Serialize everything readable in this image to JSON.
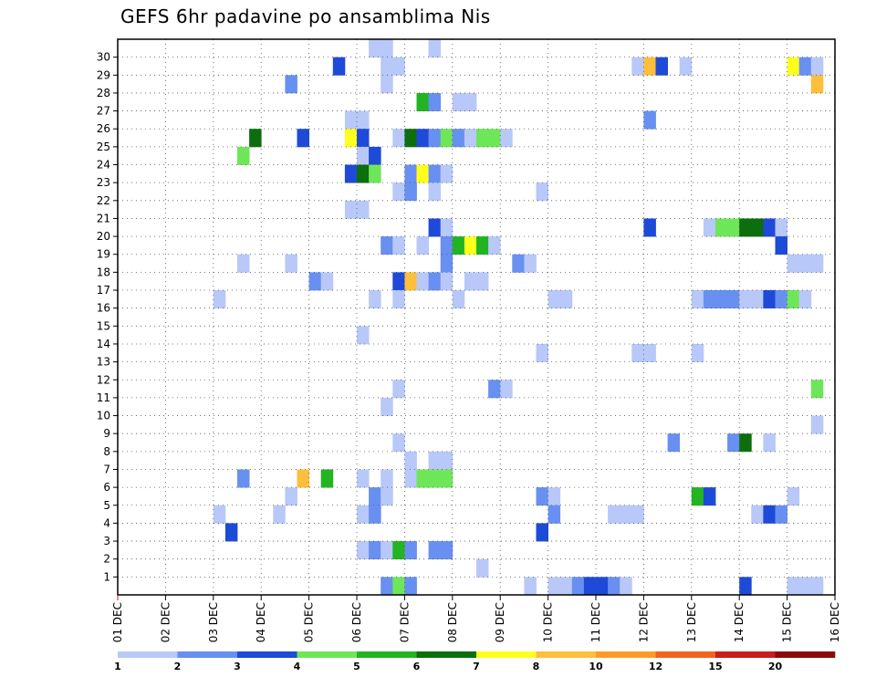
{
  "chart_data": {
    "type": "heatmap",
    "title": "GEFS 6hr padavine po ansamblima Nis",
    "xlabel": "",
    "ylabel": "",
    "x_tick_labels": [
      "01 DEC",
      "02 DEC",
      "03 DEC",
      "04 DEC",
      "05 DEC",
      "06 DEC",
      "07 DEC",
      "08 DEC",
      "09 DEC",
      "10 DEC",
      "11 DEC",
      "12 DEC",
      "13 DEC",
      "14 DEC",
      "15 DEC",
      "16 DEC"
    ],
    "y_tick_labels": [
      "1",
      "2",
      "3",
      "4",
      "5",
      "6",
      "7",
      "8",
      "9",
      "10",
      "11",
      "12",
      "13",
      "14",
      "15",
      "16",
      "17",
      "18",
      "19",
      "20",
      "21",
      "22",
      "23",
      "24",
      "25",
      "26",
      "27",
      "28",
      "29",
      "30"
    ],
    "x_range_days": [
      0,
      15
    ],
    "y_range_members": [
      0,
      30
    ],
    "time_step_hours": 6,
    "grid": "dotted",
    "legend": {
      "position": "bottom",
      "boundaries": [
        "1",
        "2",
        "3",
        "4",
        "5",
        "6",
        "7",
        "8",
        "10",
        "12",
        "15",
        "20"
      ],
      "colors": [
        "#b8c8f8",
        "#6890f0",
        "#1e4ad8",
        "#6ee65a",
        "#22b422",
        "#0c6e0c",
        "#ffff1e",
        "#ffbe3c",
        "#ff9a2a",
        "#f0641e",
        "#c81e1e",
        "#8c0a0a"
      ]
    },
    "series_note": "each cell: step = 6h index from 01 DEC 00Z, member = ensemble row (0 = bottom row), level = color class index",
    "cells": [
      {
        "member": 30,
        "step": 21,
        "level": 0
      },
      {
        "member": 30,
        "step": 22,
        "level": 0
      },
      {
        "member": 30,
        "step": 26,
        "level": 0
      },
      {
        "member": 29,
        "step": 18,
        "level": 2
      },
      {
        "member": 29,
        "step": 22,
        "level": 0
      },
      {
        "member": 29,
        "step": 23,
        "level": 0
      },
      {
        "member": 29,
        "step": 43,
        "level": 0
      },
      {
        "member": 29,
        "step": 44,
        "level": 7
      },
      {
        "member": 29,
        "step": 45,
        "level": 2
      },
      {
        "member": 29,
        "step": 47,
        "level": 0
      },
      {
        "member": 29,
        "step": 56,
        "level": 6
      },
      {
        "member": 29,
        "step": 57,
        "level": 1
      },
      {
        "member": 29,
        "step": 58,
        "level": 0
      },
      {
        "member": 28,
        "step": 14,
        "level": 1
      },
      {
        "member": 28,
        "step": 22,
        "level": 0
      },
      {
        "member": 28,
        "step": 58,
        "level": 7
      },
      {
        "member": 27,
        "step": 25,
        "level": 4
      },
      {
        "member": 27,
        "step": 26,
        "level": 1
      },
      {
        "member": 27,
        "step": 28,
        "level": 0
      },
      {
        "member": 27,
        "step": 29,
        "level": 0
      },
      {
        "member": 26,
        "step": 19,
        "level": 0
      },
      {
        "member": 26,
        "step": 20,
        "level": 0
      },
      {
        "member": 26,
        "step": 44,
        "level": 1
      },
      {
        "member": 25,
        "step": 11,
        "level": 5
      },
      {
        "member": 25,
        "step": 15,
        "level": 2
      },
      {
        "member": 25,
        "step": 19,
        "level": 6
      },
      {
        "member": 25,
        "step": 20,
        "level": 2
      },
      {
        "member": 25,
        "step": 23,
        "level": 0
      },
      {
        "member": 25,
        "step": 24,
        "level": 5
      },
      {
        "member": 25,
        "step": 25,
        "level": 2
      },
      {
        "member": 25,
        "step": 26,
        "level": 1
      },
      {
        "member": 25,
        "step": 27,
        "level": 3
      },
      {
        "member": 25,
        "step": 28,
        "level": 1
      },
      {
        "member": 25,
        "step": 29,
        "level": 0
      },
      {
        "member": 25,
        "step": 30,
        "level": 3
      },
      {
        "member": 25,
        "step": 31,
        "level": 3
      },
      {
        "member": 25,
        "step": 32,
        "level": 0
      },
      {
        "member": 24,
        "step": 10,
        "level": 3
      },
      {
        "member": 24,
        "step": 20,
        "level": 0
      },
      {
        "member": 24,
        "step": 21,
        "level": 2
      },
      {
        "member": 23,
        "step": 19,
        "level": 2
      },
      {
        "member": 23,
        "step": 20,
        "level": 5
      },
      {
        "member": 23,
        "step": 21,
        "level": 3
      },
      {
        "member": 23,
        "step": 24,
        "level": 1
      },
      {
        "member": 23,
        "step": 25,
        "level": 6
      },
      {
        "member": 23,
        "step": 26,
        "level": 1
      },
      {
        "member": 23,
        "step": 27,
        "level": 0
      },
      {
        "member": 22,
        "step": 23,
        "level": 0
      },
      {
        "member": 22,
        "step": 24,
        "level": 1
      },
      {
        "member": 22,
        "step": 26,
        "level": 0
      },
      {
        "member": 22,
        "step": 35,
        "level": 0
      },
      {
        "member": 21,
        "step": 19,
        "level": 0
      },
      {
        "member": 21,
        "step": 20,
        "level": 0
      },
      {
        "member": 20,
        "step": 26,
        "level": 2
      },
      {
        "member": 20,
        "step": 27,
        "level": 0
      },
      {
        "member": 20,
        "step": 44,
        "level": 2
      },
      {
        "member": 20,
        "step": 49,
        "level": 0
      },
      {
        "member": 20,
        "step": 50,
        "level": 3
      },
      {
        "member": 20,
        "step": 51,
        "level": 3
      },
      {
        "member": 20,
        "step": 52,
        "level": 5
      },
      {
        "member": 20,
        "step": 53,
        "level": 5
      },
      {
        "member": 20,
        "step": 54,
        "level": 2
      },
      {
        "member": 20,
        "step": 55,
        "level": 0
      },
      {
        "member": 19,
        "step": 22,
        "level": 1
      },
      {
        "member": 19,
        "step": 23,
        "level": 0
      },
      {
        "member": 19,
        "step": 25,
        "level": 0
      },
      {
        "member": 19,
        "step": 27,
        "level": 1
      },
      {
        "member": 19,
        "step": 28,
        "level": 4
      },
      {
        "member": 19,
        "step": 29,
        "level": 6
      },
      {
        "member": 19,
        "step": 30,
        "level": 4
      },
      {
        "member": 19,
        "step": 31,
        "level": 0
      },
      {
        "member": 19,
        "step": 55,
        "level": 2
      },
      {
        "member": 18,
        "step": 10,
        "level": 0
      },
      {
        "member": 18,
        "step": 14,
        "level": 0
      },
      {
        "member": 18,
        "step": 27,
        "level": 1
      },
      {
        "member": 18,
        "step": 33,
        "level": 1
      },
      {
        "member": 18,
        "step": 34,
        "level": 0
      },
      {
        "member": 18,
        "step": 56,
        "level": 0
      },
      {
        "member": 18,
        "step": 57,
        "level": 0
      },
      {
        "member": 18,
        "step": 58,
        "level": 0
      },
      {
        "member": 17,
        "step": 16,
        "level": 1
      },
      {
        "member": 17,
        "step": 17,
        "level": 0
      },
      {
        "member": 17,
        "step": 23,
        "level": 2
      },
      {
        "member": 17,
        "step": 24,
        "level": 7
      },
      {
        "member": 17,
        "step": 25,
        "level": 0
      },
      {
        "member": 17,
        "step": 26,
        "level": 1
      },
      {
        "member": 17,
        "step": 27,
        "level": 0
      },
      {
        "member": 17,
        "step": 29,
        "level": 0
      },
      {
        "member": 17,
        "step": 30,
        "level": 0
      },
      {
        "member": 16,
        "step": 8,
        "level": 0
      },
      {
        "member": 16,
        "step": 21,
        "level": 0
      },
      {
        "member": 16,
        "step": 23,
        "level": 0
      },
      {
        "member": 16,
        "step": 28,
        "level": 0
      },
      {
        "member": 16,
        "step": 36,
        "level": 0
      },
      {
        "member": 16,
        "step": 37,
        "level": 0
      },
      {
        "member": 16,
        "step": 48,
        "level": 0
      },
      {
        "member": 16,
        "step": 49,
        "level": 1
      },
      {
        "member": 16,
        "step": 50,
        "level": 1
      },
      {
        "member": 16,
        "step": 51,
        "level": 1
      },
      {
        "member": 16,
        "step": 52,
        "level": 0
      },
      {
        "member": 16,
        "step": 53,
        "level": 0
      },
      {
        "member": 16,
        "step": 54,
        "level": 2
      },
      {
        "member": 16,
        "step": 55,
        "level": 1
      },
      {
        "member": 16,
        "step": 56,
        "level": 3
      },
      {
        "member": 16,
        "step": 57,
        "level": 0
      },
      {
        "member": 14,
        "step": 20,
        "level": 0
      },
      {
        "member": 13,
        "step": 35,
        "level": 0
      },
      {
        "member": 13,
        "step": 43,
        "level": 0
      },
      {
        "member": 13,
        "step": 44,
        "level": 0
      },
      {
        "member": 13,
        "step": 48,
        "level": 0
      },
      {
        "member": 11,
        "step": 23,
        "level": 0
      },
      {
        "member": 11,
        "step": 31,
        "level": 1
      },
      {
        "member": 11,
        "step": 32,
        "level": 0
      },
      {
        "member": 11,
        "step": 58,
        "level": 3
      },
      {
        "member": 10,
        "step": 22,
        "level": 0
      },
      {
        "member": 9,
        "step": 58,
        "level": 0
      },
      {
        "member": 8,
        "step": 23,
        "level": 0
      },
      {
        "member": 8,
        "step": 46,
        "level": 1
      },
      {
        "member": 8,
        "step": 51,
        "level": 1
      },
      {
        "member": 8,
        "step": 52,
        "level": 5
      },
      {
        "member": 8,
        "step": 54,
        "level": 0
      },
      {
        "member": 7,
        "step": 24,
        "level": 0
      },
      {
        "member": 7,
        "step": 26,
        "level": 0
      },
      {
        "member": 7,
        "step": 27,
        "level": 0
      },
      {
        "member": 6,
        "step": 10,
        "level": 1
      },
      {
        "member": 6,
        "step": 15,
        "level": 7
      },
      {
        "member": 6,
        "step": 17,
        "level": 4
      },
      {
        "member": 6,
        "step": 20,
        "level": 0
      },
      {
        "member": 6,
        "step": 22,
        "level": 0
      },
      {
        "member": 6,
        "step": 24,
        "level": 0
      },
      {
        "member": 6,
        "step": 25,
        "level": 3
      },
      {
        "member": 6,
        "step": 26,
        "level": 3
      },
      {
        "member": 6,
        "step": 27,
        "level": 3
      },
      {
        "member": 5,
        "step": 14,
        "level": 0
      },
      {
        "member": 5,
        "step": 21,
        "level": 1
      },
      {
        "member": 5,
        "step": 22,
        "level": 0
      },
      {
        "member": 5,
        "step": 35,
        "level": 1
      },
      {
        "member": 5,
        "step": 36,
        "level": 0
      },
      {
        "member": 5,
        "step": 48,
        "level": 4
      },
      {
        "member": 5,
        "step": 49,
        "level": 2
      },
      {
        "member": 5,
        "step": 56,
        "level": 0
      },
      {
        "member": 4,
        "step": 8,
        "level": 0
      },
      {
        "member": 4,
        "step": 13,
        "level": 0
      },
      {
        "member": 4,
        "step": 20,
        "level": 0
      },
      {
        "member": 4,
        "step": 21,
        "level": 1
      },
      {
        "member": 4,
        "step": 36,
        "level": 1
      },
      {
        "member": 4,
        "step": 41,
        "level": 0
      },
      {
        "member": 4,
        "step": 42,
        "level": 0
      },
      {
        "member": 4,
        "step": 43,
        "level": 0
      },
      {
        "member": 4,
        "step": 53,
        "level": 0
      },
      {
        "member": 4,
        "step": 54,
        "level": 2
      },
      {
        "member": 4,
        "step": 55,
        "level": 1
      },
      {
        "member": 3,
        "step": 9,
        "level": 2
      },
      {
        "member": 3,
        "step": 35,
        "level": 2
      },
      {
        "member": 2,
        "step": 20,
        "level": 0
      },
      {
        "member": 2,
        "step": 21,
        "level": 1
      },
      {
        "member": 2,
        "step": 22,
        "level": 0
      },
      {
        "member": 2,
        "step": 23,
        "level": 4
      },
      {
        "member": 2,
        "step": 24,
        "level": 1
      },
      {
        "member": 2,
        "step": 26,
        "level": 1
      },
      {
        "member": 2,
        "step": 27,
        "level": 1
      },
      {
        "member": 1,
        "step": 30,
        "level": 0
      },
      {
        "member": 0,
        "step": 22,
        "level": 1
      },
      {
        "member": 0,
        "step": 23,
        "level": 3
      },
      {
        "member": 0,
        "step": 24,
        "level": 1
      },
      {
        "member": 0,
        "step": 34,
        "level": 0
      },
      {
        "member": 0,
        "step": 36,
        "level": 0
      },
      {
        "member": 0,
        "step": 37,
        "level": 0
      },
      {
        "member": 0,
        "step": 38,
        "level": 1
      },
      {
        "member": 0,
        "step": 39,
        "level": 2
      },
      {
        "member": 0,
        "step": 40,
        "level": 2
      },
      {
        "member": 0,
        "step": 41,
        "level": 1
      },
      {
        "member": 0,
        "step": 42,
        "level": 0
      },
      {
        "member": 0,
        "step": 52,
        "level": 2
      },
      {
        "member": 0,
        "step": 56,
        "level": 0
      },
      {
        "member": 0,
        "step": 57,
        "level": 0
      },
      {
        "member": 0,
        "step": 58,
        "level": 0
      }
    ]
  }
}
